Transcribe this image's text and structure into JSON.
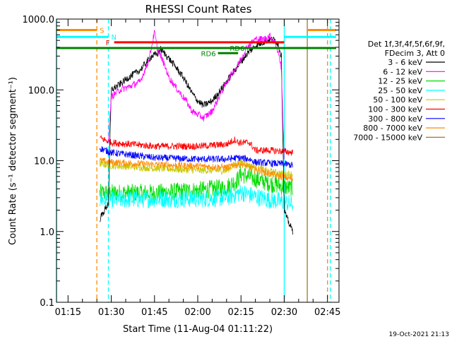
{
  "chart_data": {
    "type": "line",
    "title": "RHESSI Count Rates",
    "xlabel": "Start Time (11-Aug-04 01:11:22)",
    "ylabel": "Count Rate (s⁻¹ detector segment⁻¹)",
    "yscale": "log",
    "ylim": [
      0.1,
      1000
    ],
    "xlim": [
      "01:11",
      "02:49"
    ],
    "x_ticks": [
      "01:15",
      "01:30",
      "01:45",
      "02:00",
      "02:15",
      "02:30",
      "02:45"
    ],
    "y_ticks": [
      "0.1",
      "1.0",
      "10.0",
      "100.0",
      "1000.0"
    ],
    "grid": false,
    "legend_position": "right",
    "legend_header": [
      "Det 1f,3f,4f,5f,6f,9f,",
      "FDecim 3, Att 0"
    ],
    "series": [
      {
        "name": "3 - 6 keV",
        "color": "#000000",
        "x": [
          "01:26",
          "01:29",
          "01:30",
          "01:33",
          "01:36",
          "01:40",
          "01:44",
          "01:46",
          "01:47",
          "01:49",
          "01:52",
          "01:55",
          "01:58",
          "02:00",
          "02:02",
          "02:05",
          "02:08",
          "02:11",
          "02:14",
          "02:17",
          "02:20",
          "02:23",
          "02:25",
          "02:27",
          "02:28",
          "02:29",
          "02:30",
          "02:31",
          "02:33"
        ],
        "y": [
          1.5,
          2.5,
          100,
          120,
          150,
          190,
          300,
          320,
          380,
          310,
          220,
          150,
          90,
          70,
          60,
          70,
          100,
          150,
          220,
          320,
          420,
          480,
          520,
          500,
          430,
          300,
          2.0,
          1.5,
          1.0
        ]
      },
      {
        "name": "6 - 12 keV",
        "color": "#ff00ff",
        "x": [
          "01:29",
          "01:30",
          "01:33",
          "01:36",
          "01:40",
          "01:43",
          "01:45",
          "01:46",
          "01:48",
          "01:50",
          "01:53",
          "01:56",
          "01:58",
          "02:00",
          "02:02",
          "02:05",
          "02:08",
          "02:11",
          "02:14",
          "02:17",
          "02:20",
          "02:23",
          "02:25",
          "02:27",
          "02:28",
          "02:29",
          "02:30"
        ],
        "y": [
          20,
          80,
          100,
          110,
          130,
          260,
          650,
          380,
          250,
          150,
          100,
          70,
          50,
          45,
          40,
          50,
          90,
          150,
          230,
          400,
          520,
          520,
          580,
          450,
          330,
          200,
          9
        ]
      },
      {
        "name": "12 - 25 keV",
        "color": "#00dd00",
        "x": [
          "01:26",
          "01:30",
          "01:45",
          "02:00",
          "02:10",
          "02:14",
          "02:15",
          "02:20",
          "02:25",
          "02:30",
          "02:33"
        ],
        "y": [
          3.5,
          3.5,
          3.5,
          3.8,
          4.2,
          5.5,
          6.5,
          5.5,
          4.8,
          4.3,
          4.0
        ]
      },
      {
        "name": "25 - 50 keV",
        "color": "#00ffff",
        "x": [
          "01:26",
          "01:30",
          "01:45",
          "02:00",
          "02:10",
          "02:15",
          "02:20",
          "02:25",
          "02:30",
          "02:33"
        ],
        "y": [
          2.8,
          2.8,
          2.9,
          2.9,
          3.0,
          3.6,
          3.1,
          2.8,
          2.6,
          2.4
        ]
      },
      {
        "name": "50 - 100 keV",
        "color": "#c8c800",
        "x": [
          "01:26",
          "01:30",
          "01:45",
          "02:00",
          "02:10",
          "02:13",
          "02:15",
          "02:20",
          "02:25",
          "02:30",
          "02:33"
        ],
        "y": [
          9.0,
          8.5,
          7.8,
          7.3,
          7.2,
          9.0,
          9.5,
          8.0,
          7.0,
          6.5,
          6.5
        ]
      },
      {
        "name": "100 - 300 keV",
        "color": "#ff0000",
        "x": [
          "01:26",
          "01:30",
          "01:45",
          "02:00",
          "02:10",
          "02:13",
          "02:14",
          "02:18",
          "02:20",
          "02:25",
          "02:30",
          "02:33"
        ],
        "y": [
          21,
          18,
          16,
          16,
          17,
          20,
          18,
          18,
          14,
          14,
          13.5,
          13
        ]
      },
      {
        "name": "300 - 800 keV",
        "color": "#0000ff",
        "x": [
          "01:26",
          "01:30",
          "01:45",
          "02:00",
          "02:10",
          "02:14",
          "02:18",
          "02:20",
          "02:25",
          "02:30",
          "02:33"
        ],
        "y": [
          15,
          13,
          11,
          10.5,
          10.5,
          11,
          10.5,
          9.5,
          9.2,
          9.0,
          8.6
        ]
      },
      {
        "name": "800 - 7000 keV",
        "color": "#ff8c00",
        "x": [
          "01:26",
          "01:30",
          "01:45",
          "02:00",
          "02:10",
          "02:15",
          "02:20",
          "02:25",
          "02:30",
          "02:33"
        ],
        "y": [
          10,
          9.5,
          8.8,
          8.4,
          8.0,
          9.0,
          7.5,
          6.5,
          5.8,
          5.5
        ]
      },
      {
        "name": "7000 - 15000 keV",
        "color": "#a07828",
        "x": [],
        "y": []
      }
    ],
    "attenuator_bars": [
      {
        "label": "S",
        "color": "#ff8c00",
        "y": 700,
        "segments": [
          [
            "01:11",
            "01:25"
          ],
          [
            "02:38",
            "02:48"
          ]
        ]
      },
      {
        "label": "N",
        "color": "#00ffff",
        "y": 560,
        "segments": [
          [
            "01:11",
            "01:29"
          ],
          [
            "02:30",
            "02:48"
          ]
        ]
      },
      {
        "label": "F",
        "color": "#ff0000",
        "y": 470,
        "segments": [
          [
            "01:31",
            "02:30"
          ]
        ]
      },
      {
        "label": "",
        "color": "#008000",
        "y": 390,
        "segments": [
          [
            "01:11",
            "02:48"
          ]
        ]
      }
    ],
    "rd_bars": [
      {
        "label": "RD6",
        "color": "#008000",
        "y": 330,
        "start": "02:07",
        "end": "02:14"
      },
      {
        "label": "RD6",
        "color": "#008000",
        "y": 390,
        "start": "02:17",
        "end": "02:23"
      }
    ],
    "vertical_lines": [
      {
        "t": "01:11",
        "color": "#00ffff",
        "style": "solid"
      },
      {
        "t": "01:25",
        "color": "#ff8c00",
        "style": "dashed"
      },
      {
        "t": "01:29",
        "color": "#00ffff",
        "style": "dashed"
      },
      {
        "t": "02:30",
        "color": "#00ffff",
        "style": "solid"
      },
      {
        "t": "02:38",
        "color": "#a07828",
        "style": "solid"
      },
      {
        "t": "02:45",
        "color": "#ff8c00",
        "style": "dashed"
      },
      {
        "t": "02:46",
        "color": "#00ffff",
        "style": "dashed"
      }
    ],
    "footer_timestamp": "19-Oct-2021 21:13"
  }
}
